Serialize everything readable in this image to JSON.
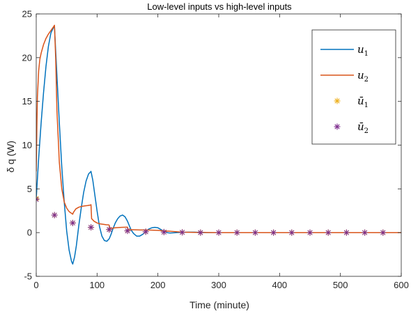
{
  "chart_data": {
    "type": "line",
    "title": "Low-level inputs vs high-level inputs",
    "xlabel": "Time (minute)",
    "ylabel": "δ q (W)",
    "xlim": [
      0,
      600
    ],
    "ylim": [
      -5,
      25
    ],
    "xticks": [
      0,
      100,
      200,
      300,
      400,
      500,
      600
    ],
    "yticks": [
      -5,
      0,
      5,
      10,
      15,
      20,
      25
    ],
    "grid": false,
    "legend_position": "top-right",
    "colors": {
      "u1": "#0072BD",
      "u2": "#D95319",
      "ubar1": "#EDB120",
      "ubar2": "#7E2F8E"
    },
    "series": [
      {
        "name": "u1",
        "name_base": "u",
        "name_sub": "1",
        "style": "line",
        "x": [
          0,
          4,
          8,
          12,
          16,
          20,
          24,
          28,
          30,
          34,
          38,
          42,
          46,
          50,
          54,
          58,
          60,
          63,
          66,
          70,
          74,
          78,
          82,
          86,
          90,
          93,
          96,
          100,
          104,
          108,
          112,
          116,
          120,
          123,
          126,
          130,
          134,
          138,
          142,
          146,
          150,
          153,
          156,
          160,
          165,
          170,
          175,
          180,
          185,
          190,
          195,
          200,
          205,
          210,
          215,
          220,
          230,
          240,
          250,
          260,
          270,
          280,
          300,
          350,
          400,
          450,
          500,
          550,
          600
        ],
        "y": [
          3.9,
          8.5,
          12.5,
          16.0,
          19.0,
          21.3,
          22.8,
          23.4,
          23.5,
          18.0,
          12.5,
          7.5,
          3.5,
          0.2,
          -2.0,
          -3.3,
          -3.6,
          -2.8,
          -1.5,
          0.8,
          2.8,
          4.6,
          5.9,
          6.7,
          7.0,
          6.0,
          4.5,
          2.5,
          0.7,
          -0.4,
          -0.9,
          -1.0,
          -0.7,
          -0.2,
          0.4,
          1.1,
          1.6,
          1.9,
          2.0,
          1.8,
          1.3,
          0.8,
          0.3,
          -0.1,
          -0.4,
          -0.4,
          -0.2,
          0.1,
          0.4,
          0.55,
          0.6,
          0.55,
          0.35,
          0.15,
          0.0,
          -0.05,
          0.0,
          0.02,
          0.05,
          0.05,
          0.02,
          0.0,
          0.0,
          0.0,
          0.0,
          0.0,
          0.0,
          0.0,
          0.0
        ]
      },
      {
        "name": "u2",
        "name_base": "u",
        "name_sub": "2",
        "style": "line",
        "x": [
          0,
          1,
          2,
          4,
          6,
          8,
          12,
          16,
          20,
          24,
          28,
          30,
          32,
          34,
          38,
          42,
          46,
          50,
          54,
          58,
          60,
          61,
          65,
          70,
          75,
          80,
          85,
          89,
          90,
          91,
          95,
          100,
          105,
          110,
          115,
          119,
          120,
          121,
          125,
          130,
          140,
          149,
          150,
          151,
          160,
          170,
          180,
          190,
          200,
          210,
          220,
          240,
          260,
          300,
          400,
          500,
          600
        ],
        "y": [
          7.0,
          12.0,
          15.5,
          18.5,
          19.8,
          20.5,
          21.5,
          22.2,
          22.7,
          23.1,
          23.5,
          23.7,
          20.0,
          14.0,
          8.0,
          5.0,
          3.5,
          2.8,
          2.4,
          2.2,
          2.1,
          2.3,
          2.7,
          2.9,
          3.0,
          3.05,
          3.1,
          3.15,
          3.2,
          1.6,
          1.3,
          1.1,
          1.0,
          0.95,
          0.9,
          0.88,
          0.85,
          0.5,
          0.5,
          0.55,
          0.6,
          0.62,
          0.62,
          0.35,
          0.32,
          0.3,
          0.3,
          0.28,
          0.25,
          0.2,
          0.15,
          0.05,
          0.02,
          0.0,
          0.0,
          0.0,
          0.0
        ]
      },
      {
        "name": "ubar1",
        "name_base": "ū",
        "name_sub": "1",
        "style": "marker",
        "x": [
          0,
          30,
          60,
          90,
          120,
          150,
          180,
          210,
          240,
          270,
          300,
          330,
          360,
          390,
          420,
          450,
          480,
          510,
          540,
          570
        ],
        "y": [
          3.9,
          2.0,
          1.1,
          0.6,
          0.35,
          0.2,
          0.1,
          0.06,
          0.03,
          0.0,
          0.0,
          0.0,
          0.0,
          0.0,
          0.0,
          0.0,
          0.0,
          0.0,
          0.0,
          0.0
        ]
      },
      {
        "name": "ubar2",
        "name_base": "ū",
        "name_sub": "2",
        "style": "marker",
        "x": [
          0,
          30,
          60,
          90,
          120,
          150,
          180,
          210,
          240,
          270,
          300,
          330,
          360,
          390,
          420,
          450,
          480,
          510,
          540,
          570
        ],
        "y": [
          3.8,
          2.0,
          1.1,
          0.6,
          0.35,
          0.2,
          0.1,
          0.06,
          0.03,
          0.0,
          0.0,
          0.0,
          0.0,
          0.0,
          0.0,
          0.0,
          0.0,
          0.0,
          0.0,
          0.0
        ]
      }
    ]
  }
}
